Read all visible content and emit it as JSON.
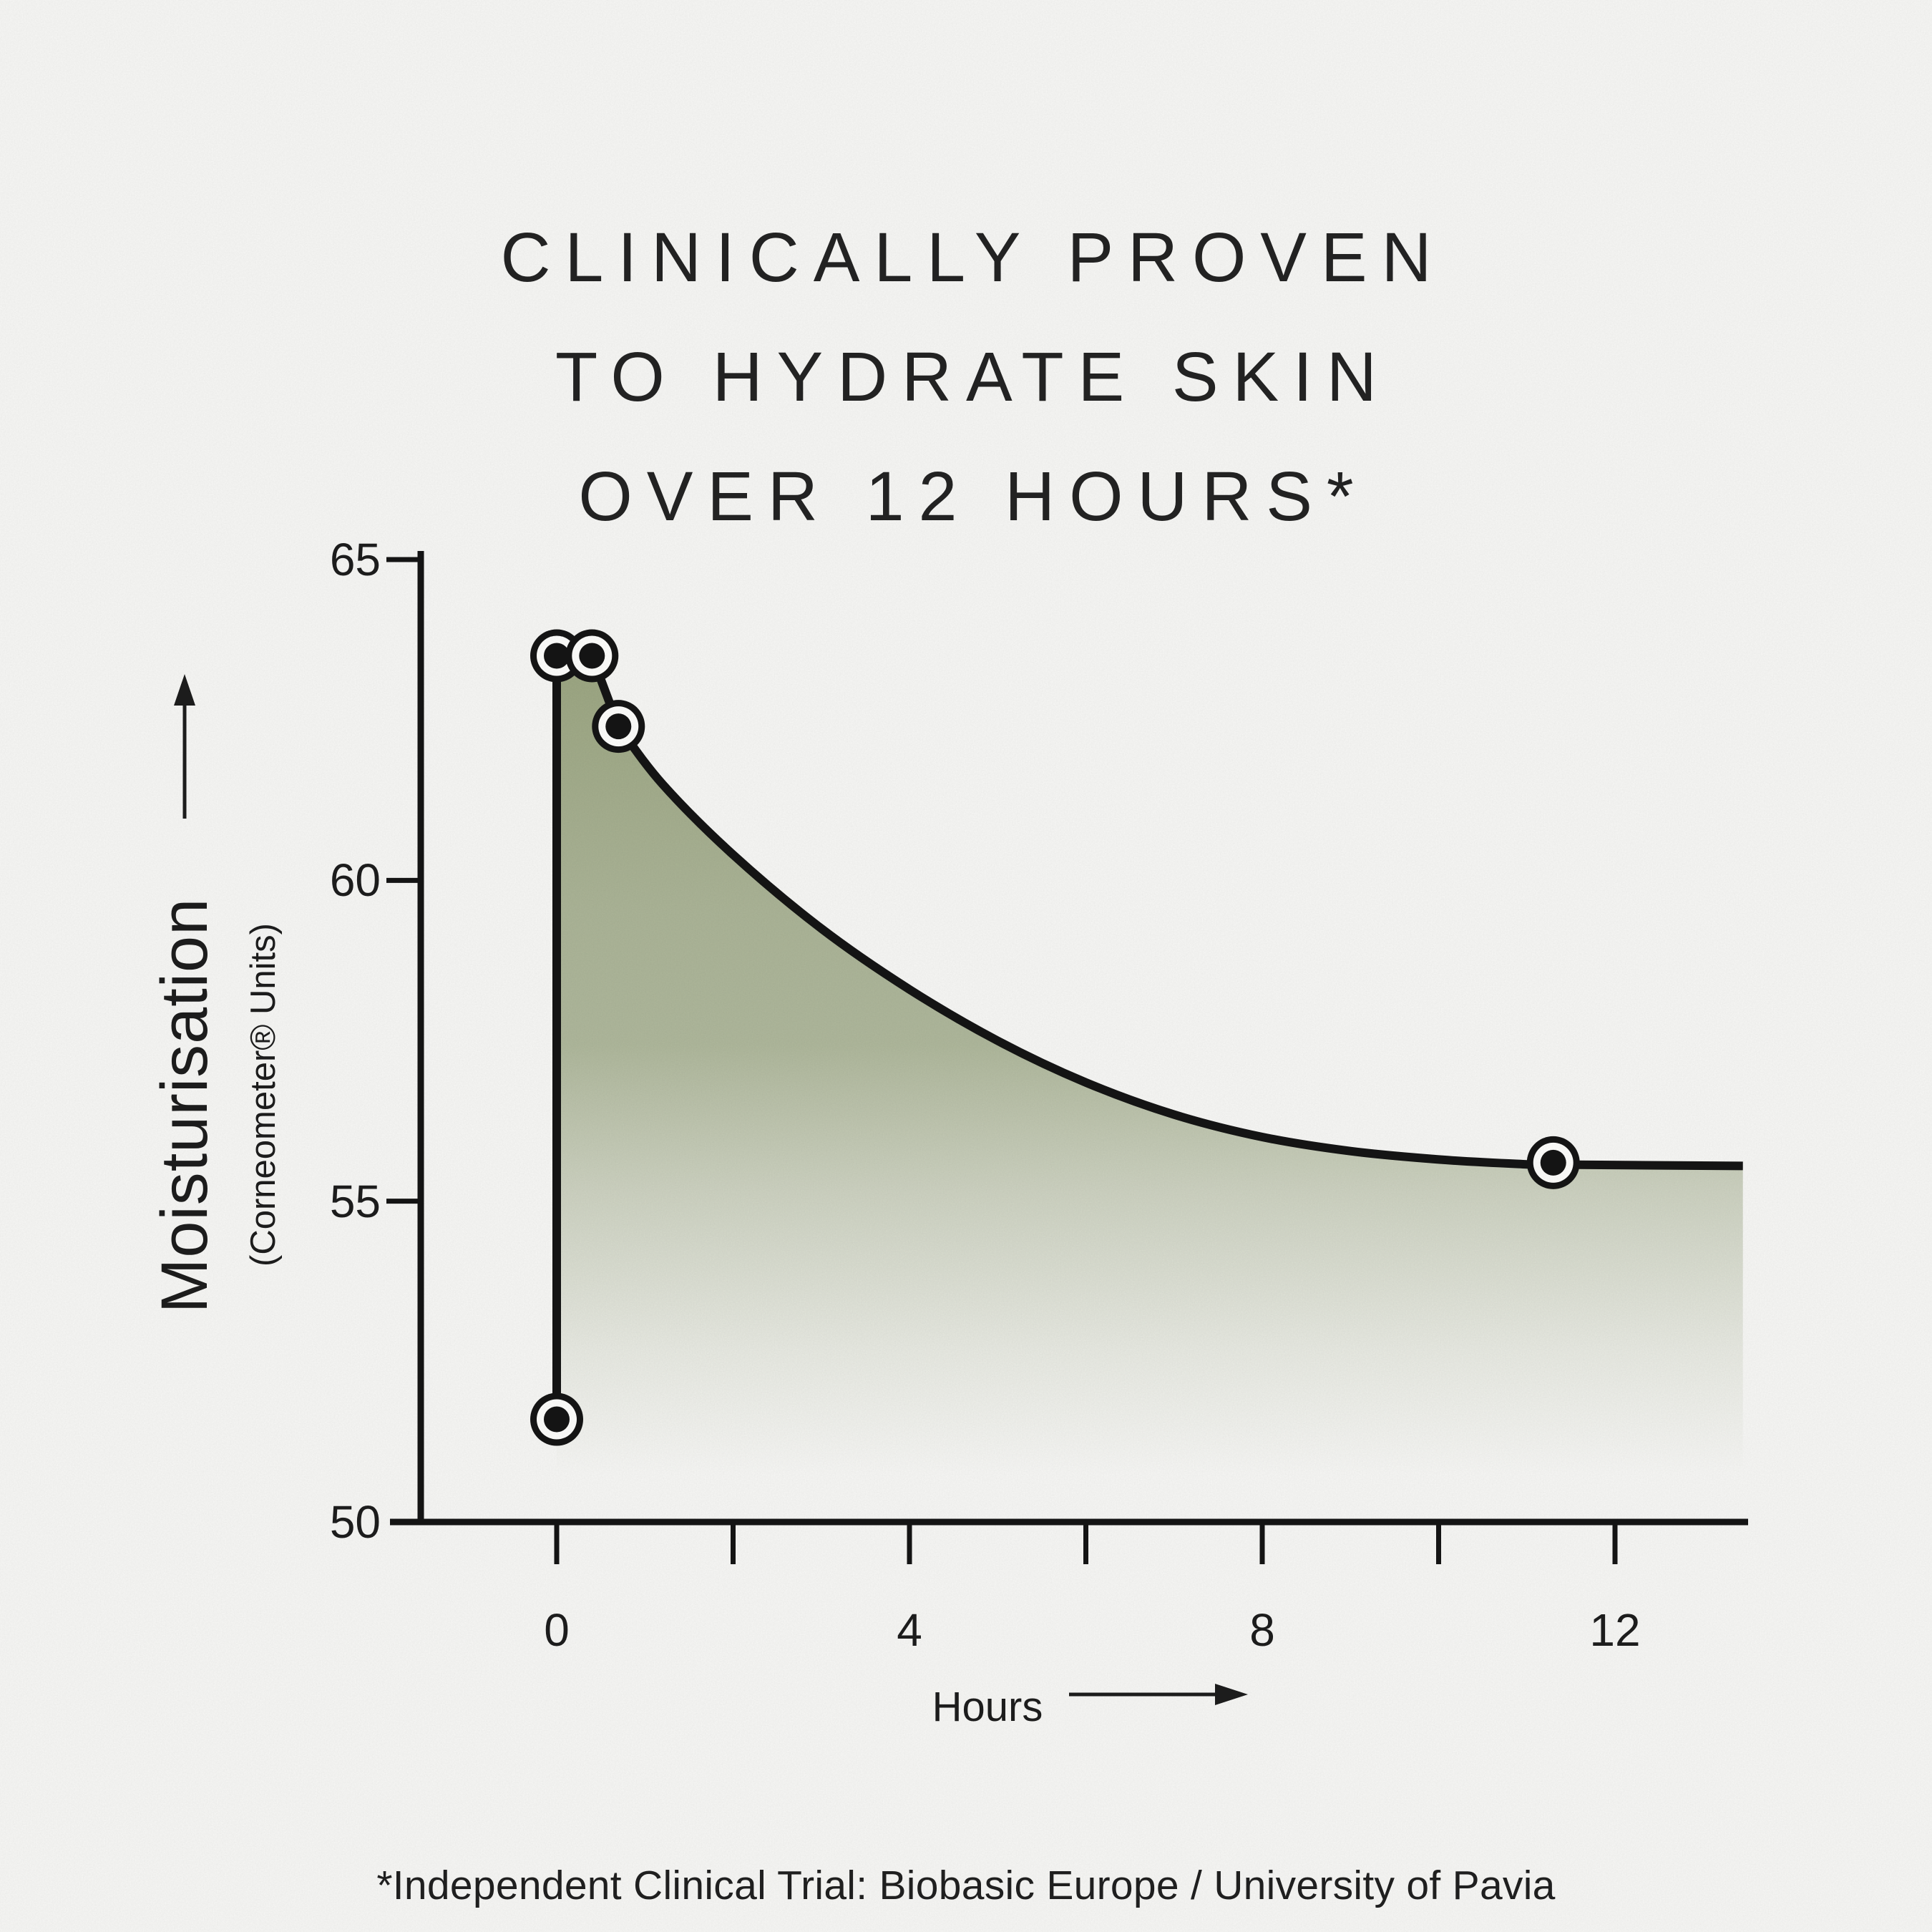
{
  "title": {
    "line1": "CLINICALLY PROVEN",
    "line2": "TO HYDRATE SKIN",
    "line3": "OVER 12 HOURS*"
  },
  "footnote": "*Independent Clinical Trial: Biobasic Europe / University of Pavia",
  "chart_data": {
    "type": "line",
    "title": "CLINICALLY PROVEN TO HYDRATE SKIN OVER 12 HOURS*",
    "xlabel": "Hours",
    "ylabel": "Moisturisation",
    "ylabel_sub": "(Corneometer® Units)",
    "xlim": [
      0,
      13.5
    ],
    "ylim": [
      50,
      65
    ],
    "grid": false,
    "legend": false,
    "y_ticks": [
      {
        "v": 65,
        "label": "65"
      },
      {
        "v": 60,
        "label": "60"
      },
      {
        "v": 55,
        "label": "55"
      },
      {
        "v": 50,
        "label": "50"
      }
    ],
    "x_ticks": [
      {
        "h": 0,
        "label": "0"
      },
      {
        "h": 2,
        "label": ""
      },
      {
        "h": 4,
        "label": "4"
      },
      {
        "h": 6,
        "label": ""
      },
      {
        "h": 8,
        "label": "8"
      },
      {
        "h": 10,
        "label": ""
      },
      {
        "h": 12,
        "label": "12"
      }
    ],
    "series": [
      {
        "name": "Moisturisation (Corneometer Units)",
        "points": [
          [
            0,
            51.6
          ],
          [
            0,
            63.5
          ],
          [
            0.4,
            63.5
          ],
          [
            0.7,
            62.4
          ],
          [
            11.3,
            55.6
          ]
        ]
      }
    ],
    "curve_samples": [
      [
        0.7,
        62.4
      ],
      [
        1.2,
        61.5
      ],
      [
        2,
        60.4
      ],
      [
        3,
        59.25
      ],
      [
        4,
        58.3
      ],
      [
        5,
        57.5
      ],
      [
        6,
        56.85
      ],
      [
        7,
        56.35
      ],
      [
        8,
        56.0
      ],
      [
        9,
        55.78
      ],
      [
        10,
        55.65
      ],
      [
        10.9,
        55.58
      ],
      [
        11.3,
        55.57
      ],
      [
        13.45,
        55.55
      ]
    ],
    "colors": {
      "ink": "#141414",
      "fill_top": "#99a37f",
      "fill_mid": "#a9b295",
      "paper": "#f4f4f2",
      "marker_ring": "#fbfbf9"
    }
  }
}
